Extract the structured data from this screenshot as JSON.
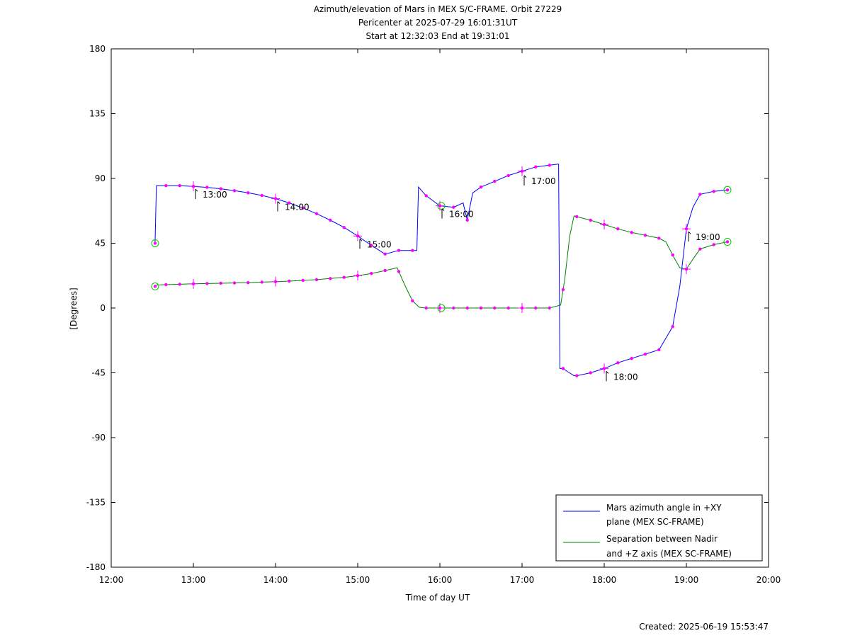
{
  "chart_data": {
    "type": "line",
    "title": "Azimuth/elevation of Mars in MEX S/C-FRAME.  Orbit 27229",
    "subtitle_1": "Pericenter at 2025-07-29 16:01:31UT",
    "subtitle_2": "Start at 12:32:03 End at 19:31:01",
    "xlabel": "Time of day UT",
    "ylabel": "[Degrees]",
    "xlim": [
      12,
      20
    ],
    "ylim": [
      -180,
      180
    ],
    "x_ticks": [
      12,
      13,
      14,
      15,
      16,
      17,
      18,
      19,
      20
    ],
    "x_tick_labels": [
      "12:00",
      "13:00",
      "14:00",
      "15:00",
      "16:00",
      "17:00",
      "18:00",
      "19:00",
      "20:00"
    ],
    "y_ticks": [
      180,
      135,
      90,
      45,
      0,
      -45,
      -90,
      -135,
      -180
    ],
    "y_tick_labels": [
      "180",
      "135",
      "90",
      "45",
      "0",
      "-45",
      "-90",
      "-135",
      "-180"
    ],
    "grid": false,
    "legend_position": "bottom-right",
    "series": [
      {
        "name": "Mars azimuth angle in +XY plane (MEX SC-FRAME)",
        "legend_line1": "Mars azimuth angle in +XY",
        "legend_line2": "plane (MEX SC-FRAME)",
        "color": "#0000ff",
        "x": [
          12.534,
          12.55,
          12.833,
          13.0,
          13.167,
          13.333,
          13.5,
          13.667,
          13.833,
          14.0,
          14.167,
          14.333,
          14.5,
          14.667,
          14.833,
          15.0,
          15.167,
          15.333,
          15.5,
          15.667,
          15.72,
          15.74,
          15.833,
          16.0,
          16.167,
          16.283,
          16.333,
          16.4,
          16.5,
          16.667,
          16.833,
          17.0,
          17.167,
          17.44,
          17.445,
          17.46,
          17.5,
          17.55,
          17.633,
          17.667,
          17.833,
          18.0,
          18.167,
          18.333,
          18.5,
          18.667,
          18.833,
          18.92,
          19.0,
          19.08,
          19.167,
          19.333,
          19.5
        ],
        "y": [
          45,
          85,
          85,
          84.5,
          83.8,
          82.8,
          81.5,
          80,
          78.2,
          76,
          73,
          69.5,
          65.5,
          61,
          56,
          50,
          43.5,
          37.5,
          40,
          40,
          40,
          84,
          78,
          71,
          70,
          73,
          61,
          80,
          84,
          88,
          92,
          95,
          98,
          100,
          100,
          -42,
          -42,
          -44,
          -47,
          -47,
          -45,
          -42,
          -38,
          -35,
          -32,
          -29,
          -13,
          15,
          55,
          70,
          79,
          81,
          82
        ]
      },
      {
        "name": "Separation between Nadir and +Z axis (MEX SC-FRAME)",
        "legend_line1": "Separation between Nadir",
        "legend_line2": "and +Z axis (MEX SC-FRAME)",
        "color": "#008000",
        "x": [
          12.534,
          12.55,
          12.833,
          13.0,
          13.167,
          13.333,
          13.5,
          13.667,
          13.833,
          14.0,
          14.167,
          14.333,
          14.5,
          14.667,
          14.833,
          15.0,
          15.167,
          15.333,
          15.48,
          15.58,
          15.667,
          15.75,
          15.833,
          16.0,
          16.167,
          16.333,
          16.5,
          16.667,
          16.833,
          17.0,
          17.167,
          17.333,
          17.47,
          17.52,
          17.58,
          17.633,
          17.833,
          18.0,
          18.167,
          18.333,
          18.5,
          18.667,
          18.75,
          18.85,
          18.92,
          19.0,
          19.08,
          19.167,
          19.333,
          19.5
        ],
        "y": [
          15,
          16,
          16.5,
          16.8,
          17,
          17.2,
          17.4,
          17.6,
          18,
          18.3,
          18.7,
          19.2,
          19.7,
          20.5,
          21.3,
          22.5,
          24,
          26,
          28,
          15,
          5,
          0.5,
          0,
          0,
          0,
          0,
          0,
          0,
          0,
          0,
          0,
          0,
          2,
          20,
          50,
          64,
          61,
          58,
          55,
          52.5,
          50.5,
          48.5,
          46,
          35,
          28,
          27,
          34,
          41,
          44,
          46
        ]
      }
    ],
    "time_labels": [
      "13:00",
      "14:00",
      "15:00",
      "16:00",
      "17:00",
      "18:00",
      "19:00"
    ],
    "footer": "Created: 2025-06-19 15:53:47"
  },
  "colors": {
    "azimuth": "#0000ff",
    "separation": "#008000",
    "markers": "#ff00ff",
    "endpoint_circles": "#00cc00"
  }
}
